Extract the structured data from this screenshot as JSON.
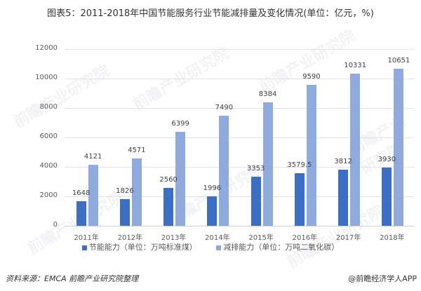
{
  "title": "图表5：2011-2018年中国节能服务行业节能减排量及变化情况(单位：亿元，%)",
  "colors": {
    "series1": "#3a6fc4",
    "series2": "#8eaadf",
    "grid": "#e2e2e2",
    "text": "#595959"
  },
  "legend": {
    "series1": "节能能力（单位：万吨标准煤）",
    "series2": "减排能力（单位：万吨二氧化碳）"
  },
  "footer": {
    "source": "资料来源：EMCA 前瞻产业研究院整理",
    "credit": "@前瞻经济学人APP"
  },
  "watermark": "前瞻产业研究院",
  "chart_data": {
    "type": "bar",
    "title": "图表5：2011-2018年中国节能服务行业节能减排量及变化情况(单位：亿元，%)",
    "xlabel": "",
    "ylabel": "",
    "ylim": [
      0,
      12000
    ],
    "yticks": [
      0,
      2000,
      4000,
      6000,
      8000,
      10000,
      12000
    ],
    "grid": true,
    "legend_position": "bottom",
    "categories": [
      "2011年",
      "2012年",
      "2013年",
      "2014年",
      "2015年",
      "2016年",
      "2017年",
      "2018年"
    ],
    "series": [
      {
        "name": "节能能力（单位：万吨标准煤）",
        "values": [
          1648,
          1826,
          2560,
          1996,
          3353,
          3579.5,
          3812,
          3930
        ]
      },
      {
        "name": "减排能力（单位：万吨二氧化碳）",
        "values": [
          4121,
          4571,
          6399,
          7490,
          8384,
          9590,
          10331,
          10651
        ]
      }
    ]
  }
}
